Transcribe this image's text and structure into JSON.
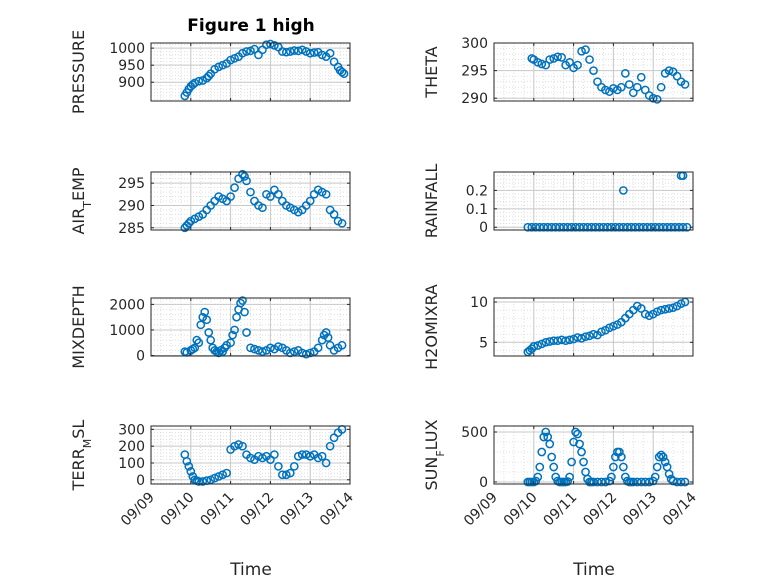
{
  "figure": {
    "title": "Figure 1 high",
    "xlabel": "Time",
    "x_ticks": [
      "09/09",
      "09/10",
      "09/11",
      "09/12",
      "09/13",
      "09/14"
    ],
    "marker_color": "#0072BD"
  },
  "chart_data": [
    {
      "type": "scatter",
      "ylabel": "PRESSURE",
      "ylim": [
        845,
        1015
      ],
      "yticks": [
        900,
        950,
        1000
      ],
      "grid": true,
      "x": [
        0.85,
        0.9,
        0.95,
        1.0,
        1.05,
        1.1,
        1.2,
        1.3,
        1.4,
        1.45,
        1.5,
        1.6,
        1.7,
        1.8,
        1.9,
        2.0,
        2.1,
        2.2,
        2.3,
        2.4,
        2.5,
        2.6,
        2.7,
        2.8,
        2.9,
        3.0,
        3.1,
        3.2,
        3.3,
        3.4,
        3.5,
        3.6,
        3.7,
        3.8,
        3.9,
        4.0,
        4.1,
        4.2,
        4.3,
        4.4,
        4.5,
        4.6,
        4.7,
        4.75,
        4.8,
        4.85
      ],
      "y": [
        860,
        870,
        880,
        888,
        893,
        898,
        903,
        905,
        912,
        918,
        925,
        938,
        945,
        950,
        955,
        965,
        970,
        975,
        985,
        990,
        992,
        997,
        980,
        995,
        1010,
        1012,
        1008,
        1003,
        990,
        988,
        990,
        993,
        992,
        995,
        990,
        985,
        987,
        988,
        980,
        975,
        985,
        960,
        945,
        935,
        930,
        925
      ]
    },
    {
      "type": "scatter",
      "ylabel": "THETA",
      "ylim": [
        289.5,
        300
      ],
      "yticks": [
        290,
        295,
        300
      ],
      "grid": true,
      "x": [
        0.95,
        1.0,
        1.1,
        1.2,
        1.3,
        1.4,
        1.5,
        1.6,
        1.7,
        1.8,
        1.9,
        2.0,
        2.1,
        2.2,
        2.3,
        2.4,
        2.5,
        2.6,
        2.7,
        2.8,
        2.9,
        3.0,
        3.1,
        3.2,
        3.3,
        3.4,
        3.5,
        3.6,
        3.7,
        3.8,
        3.9,
        4.0,
        4.1,
        4.2,
        4.3,
        4.4,
        4.5,
        4.6,
        4.7,
        4.8
      ],
      "y": [
        297.2,
        297,
        296.5,
        296.2,
        296,
        297,
        297.2,
        297.5,
        297.4,
        296,
        296.5,
        295.5,
        296,
        298.5,
        298.8,
        297,
        295,
        293,
        292,
        291.5,
        291.2,
        291.8,
        291.5,
        292,
        294.5,
        292.5,
        291,
        292,
        293.8,
        291.5,
        290.5,
        290,
        289.8,
        292,
        294.5,
        295,
        294.8,
        294,
        293,
        292.5
      ]
    },
    {
      "type": "scatter",
      "ylabel": "AIR_T_EMP",
      "ylim": [
        284.5,
        297.5
      ],
      "yticks": [
        285,
        290,
        295
      ],
      "grid": true,
      "x": [
        0.85,
        0.9,
        0.95,
        1.0,
        1.1,
        1.2,
        1.3,
        1.4,
        1.5,
        1.6,
        1.7,
        1.8,
        1.9,
        2.0,
        2.1,
        2.2,
        2.3,
        2.35,
        2.4,
        2.5,
        2.6,
        2.7,
        2.8,
        2.9,
        3.0,
        3.1,
        3.2,
        3.3,
        3.4,
        3.5,
        3.6,
        3.7,
        3.8,
        3.9,
        4.0,
        4.1,
        4.2,
        4.3,
        4.4,
        4.5,
        4.6,
        4.7,
        4.8
      ],
      "y": [
        285,
        285.5,
        286,
        286.5,
        287,
        287.5,
        288,
        289,
        290,
        291,
        292,
        291.5,
        291,
        292,
        294,
        296,
        297,
        296.5,
        295.5,
        293,
        291,
        290,
        289.5,
        292.5,
        292,
        293.5,
        292.5,
        291,
        290,
        289.5,
        289,
        288.5,
        289,
        290,
        291,
        292.5,
        293.5,
        293,
        292.5,
        289,
        288,
        286.5,
        286
      ]
    },
    {
      "type": "scatter",
      "ylabel": "RAINFALL",
      "ylim": [
        -0.015,
        0.3
      ],
      "yticks": [
        0,
        0.1,
        0.2
      ],
      "grid": true,
      "x": [
        0.85,
        0.95,
        1.05,
        1.15,
        1.25,
        1.35,
        1.45,
        1.55,
        1.65,
        1.75,
        1.85,
        1.95,
        2.05,
        2.15,
        2.25,
        2.35,
        2.45,
        2.55,
        2.65,
        2.75,
        2.85,
        2.95,
        3.05,
        3.15,
        3.25,
        3.35,
        3.45,
        3.55,
        3.65,
        3.75,
        3.85,
        3.95,
        4.05,
        4.15,
        4.25,
        4.35,
        4.45,
        4.55,
        4.65,
        4.75,
        4.85,
        3.25,
        4.7,
        4.75
      ],
      "y": [
        0,
        0,
        0,
        0,
        0,
        0,
        0,
        0,
        0,
        0,
        0,
        0,
        0,
        0,
        0,
        0,
        0,
        0,
        0,
        0,
        0,
        0,
        0,
        0,
        0,
        0,
        0,
        0,
        0,
        0,
        0,
        0,
        0,
        0,
        0,
        0,
        0,
        0,
        0,
        0,
        0,
        0.2,
        0.28,
        0.28
      ]
    },
    {
      "type": "scatter",
      "ylabel": "MIXDEPTH",
      "ylim": [
        -20,
        2250
      ],
      "yticks": [
        0,
        1000,
        2000
      ],
      "grid": true,
      "x": [
        0.85,
        0.9,
        1.0,
        1.05,
        1.1,
        1.15,
        1.2,
        1.25,
        1.3,
        1.35,
        1.4,
        1.45,
        1.5,
        1.55,
        1.6,
        1.65,
        1.7,
        1.75,
        1.8,
        1.85,
        1.9,
        2.0,
        2.05,
        2.1,
        2.15,
        2.2,
        2.25,
        2.3,
        2.35,
        2.4,
        2.5,
        2.6,
        2.7,
        2.8,
        2.9,
        3.0,
        3.1,
        3.2,
        3.3,
        3.4,
        3.5,
        3.6,
        3.7,
        3.8,
        3.9,
        4.0,
        4.1,
        4.2,
        4.3,
        4.35,
        4.4,
        4.45,
        4.5,
        4.6,
        4.7,
        4.8
      ],
      "y": [
        150,
        120,
        200,
        250,
        300,
        600,
        500,
        1200,
        1500,
        1700,
        1400,
        900,
        600,
        300,
        200,
        150,
        100,
        200,
        150,
        300,
        400,
        500,
        800,
        1000,
        1500,
        1800,
        2050,
        2150,
        1700,
        900,
        300,
        250,
        200,
        150,
        200,
        300,
        250,
        350,
        300,
        200,
        100,
        150,
        200,
        100,
        50,
        100,
        150,
        300,
        600,
        800,
        900,
        700,
        400,
        200,
        300,
        400
      ]
    },
    {
      "type": "scatter",
      "ylabel": "H2OMIXRA",
      "ylim": [
        3.3,
        10.5
      ],
      "yticks": [
        5,
        10
      ],
      "grid": true,
      "x": [
        0.85,
        0.9,
        0.95,
        1.0,
        1.1,
        1.2,
        1.3,
        1.4,
        1.5,
        1.6,
        1.7,
        1.8,
        1.9,
        2.0,
        2.1,
        2.2,
        2.3,
        2.4,
        2.5,
        2.6,
        2.7,
        2.8,
        2.9,
        3.0,
        3.1,
        3.2,
        3.3,
        3.4,
        3.5,
        3.6,
        3.7,
        3.8,
        3.9,
        4.0,
        4.1,
        4.2,
        4.3,
        4.4,
        4.5,
        4.6,
        4.7,
        4.8
      ],
      "y": [
        3.8,
        4,
        4.2,
        4.5,
        4.6,
        4.8,
        5,
        5.1,
        5.2,
        5.2,
        5.3,
        5.2,
        5.3,
        5.4,
        5.6,
        5.5,
        5.7,
        5.8,
        6,
        5.9,
        6.3,
        6.5,
        6.8,
        7,
        7.2,
        7.5,
        8,
        8.5,
        9,
        9.5,
        9.2,
        8.5,
        8.3,
        8.5,
        8.8,
        9,
        9.1,
        9.2,
        9.3,
        9.5,
        9.8,
        10
      ]
    },
    {
      "type": "scatter",
      "ylabel": "TERR_M_SL",
      "ylim": [
        -25,
        320
      ],
      "yticks": [
        0,
        100,
        200,
        300
      ],
      "grid": true,
      "x": [
        0.85,
        0.9,
        0.95,
        1.0,
        1.05,
        1.1,
        1.15,
        1.2,
        1.3,
        1.4,
        1.5,
        1.6,
        1.7,
        1.8,
        1.9,
        2.0,
        2.1,
        2.2,
        2.3,
        2.4,
        2.5,
        2.6,
        2.7,
        2.8,
        2.9,
        3.0,
        3.1,
        3.2,
        3.3,
        3.4,
        3.5,
        3.6,
        3.7,
        3.8,
        3.9,
        4.0,
        4.1,
        4.2,
        4.3,
        4.4,
        4.5,
        4.6,
        4.7,
        4.8
      ],
      "y": [
        150,
        110,
        80,
        50,
        20,
        0,
        -5,
        -10,
        -10,
        -5,
        0,
        10,
        20,
        30,
        40,
        180,
        200,
        210,
        200,
        150,
        130,
        120,
        140,
        130,
        140,
        120,
        150,
        80,
        30,
        30,
        40,
        80,
        140,
        150,
        150,
        140,
        150,
        130,
        140,
        100,
        200,
        250,
        280,
        300
      ]
    },
    {
      "type": "scatter",
      "ylabel": "SUN_F_LUX",
      "ylim": [
        -20,
        560
      ],
      "yticks": [
        0,
        500
      ],
      "grid": true,
      "x": [
        0.85,
        0.9,
        0.95,
        1.0,
        1.05,
        1.1,
        1.15,
        1.2,
        1.25,
        1.3,
        1.35,
        1.4,
        1.45,
        1.5,
        1.55,
        1.6,
        1.65,
        1.7,
        1.75,
        1.8,
        1.85,
        1.9,
        1.95,
        2.0,
        2.05,
        2.1,
        2.15,
        2.2,
        2.25,
        2.3,
        2.35,
        2.4,
        2.45,
        2.5,
        2.6,
        2.7,
        2.8,
        2.9,
        2.95,
        3.0,
        3.05,
        3.1,
        3.15,
        3.2,
        3.25,
        3.3,
        3.35,
        3.4,
        3.45,
        3.5,
        3.6,
        3.7,
        3.8,
        3.9,
        4.0,
        4.05,
        4.1,
        4.15,
        4.2,
        4.25,
        4.3,
        4.35,
        4.4,
        4.45,
        4.5,
        4.6,
        4.7,
        4.8
      ],
      "y": [
        0,
        0,
        0,
        0,
        10,
        50,
        150,
        300,
        450,
        500,
        450,
        380,
        250,
        150,
        50,
        10,
        0,
        0,
        0,
        0,
        5,
        50,
        200,
        400,
        500,
        480,
        380,
        300,
        200,
        100,
        30,
        0,
        0,
        0,
        0,
        0,
        0,
        10,
        50,
        150,
        250,
        300,
        300,
        250,
        150,
        50,
        10,
        0,
        0,
        0,
        0,
        0,
        0,
        0,
        10,
        50,
        150,
        250,
        270,
        250,
        200,
        150,
        80,
        30,
        10,
        0,
        0,
        0
      ]
    }
  ]
}
